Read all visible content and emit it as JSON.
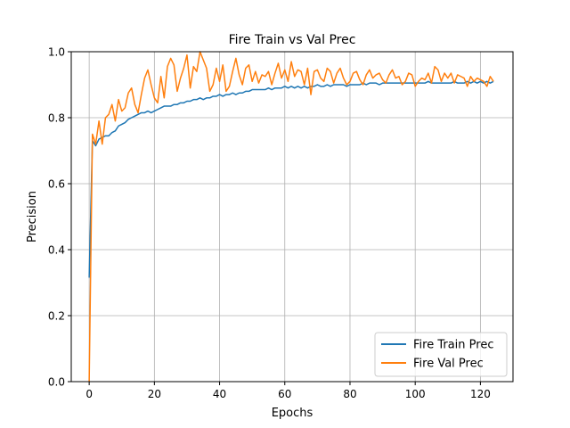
{
  "chart_data": {
    "type": "line",
    "title": "Fire Train vs Val Prec",
    "xlabel": "Epochs",
    "ylabel": "Precision",
    "xlim": [
      -5.5,
      130
    ],
    "ylim": [
      0.0,
      1.0
    ],
    "grid": true,
    "legend_position": "lower right",
    "x_ticks": [
      0,
      20,
      40,
      60,
      80,
      100,
      120
    ],
    "y_ticks": [
      0.0,
      0.2,
      0.4,
      0.6,
      0.8,
      1.0
    ],
    "x_tick_labels": [
      "0",
      "20",
      "40",
      "60",
      "80",
      "100",
      "120"
    ],
    "y_tick_labels": [
      "0.0",
      "0.2",
      "0.4",
      "0.6",
      "0.8",
      "1.0"
    ],
    "series": [
      {
        "name": "Fire Train Prec",
        "color": "#1f77b4",
        "values": [
          0.315,
          0.73,
          0.715,
          0.735,
          0.74,
          0.745,
          0.745,
          0.755,
          0.76,
          0.775,
          0.78,
          0.785,
          0.795,
          0.8,
          0.805,
          0.81,
          0.815,
          0.815,
          0.82,
          0.815,
          0.82,
          0.825,
          0.83,
          0.835,
          0.835,
          0.835,
          0.84,
          0.84,
          0.845,
          0.845,
          0.85,
          0.85,
          0.855,
          0.855,
          0.86,
          0.855,
          0.86,
          0.86,
          0.865,
          0.865,
          0.87,
          0.865,
          0.87,
          0.87,
          0.875,
          0.87,
          0.875,
          0.875,
          0.88,
          0.88,
          0.885,
          0.885,
          0.885,
          0.885,
          0.885,
          0.89,
          0.885,
          0.89,
          0.89,
          0.89,
          0.895,
          0.89,
          0.895,
          0.89,
          0.895,
          0.89,
          0.895,
          0.89,
          0.895,
          0.895,
          0.9,
          0.895,
          0.895,
          0.9,
          0.895,
          0.9,
          0.9,
          0.9,
          0.9,
          0.895,
          0.9,
          0.9,
          0.9,
          0.9,
          0.905,
          0.9,
          0.905,
          0.905,
          0.905,
          0.9,
          0.905,
          0.905,
          0.905,
          0.905,
          0.905,
          0.905,
          0.905,
          0.905,
          0.905,
          0.905,
          0.905,
          0.905,
          0.905,
          0.905,
          0.91,
          0.905,
          0.905,
          0.905,
          0.905,
          0.905,
          0.905,
          0.905,
          0.91,
          0.905,
          0.905,
          0.905,
          0.91,
          0.905,
          0.91,
          0.905,
          0.91,
          0.905,
          0.91,
          0.905,
          0.91
        ]
      },
      {
        "name": "Fire Val Prec",
        "color": "#ff7f0e",
        "values": [
          0.0,
          0.75,
          0.72,
          0.79,
          0.72,
          0.8,
          0.81,
          0.84,
          0.79,
          0.855,
          0.82,
          0.83,
          0.875,
          0.89,
          0.84,
          0.815,
          0.87,
          0.92,
          0.945,
          0.9,
          0.86,
          0.845,
          0.925,
          0.86,
          0.955,
          0.98,
          0.96,
          0.88,
          0.92,
          0.95,
          0.99,
          0.89,
          0.955,
          0.94,
          1.0,
          0.975,
          0.95,
          0.88,
          0.9,
          0.95,
          0.91,
          0.96,
          0.88,
          0.895,
          0.94,
          0.98,
          0.93,
          0.9,
          0.95,
          0.96,
          0.91,
          0.94,
          0.905,
          0.93,
          0.925,
          0.94,
          0.9,
          0.935,
          0.965,
          0.92,
          0.945,
          0.91,
          0.97,
          0.925,
          0.945,
          0.94,
          0.9,
          0.95,
          0.87,
          0.94,
          0.945,
          0.92,
          0.91,
          0.95,
          0.94,
          0.905,
          0.935,
          0.95,
          0.92,
          0.9,
          0.91,
          0.935,
          0.94,
          0.915,
          0.9,
          0.93,
          0.945,
          0.92,
          0.93,
          0.935,
          0.915,
          0.905,
          0.93,
          0.945,
          0.92,
          0.925,
          0.9,
          0.91,
          0.935,
          0.93,
          0.895,
          0.91,
          0.92,
          0.915,
          0.935,
          0.905,
          0.955,
          0.945,
          0.91,
          0.935,
          0.92,
          0.935,
          0.905,
          0.93,
          0.925,
          0.92,
          0.895,
          0.925,
          0.91,
          0.92,
          0.915,
          0.91,
          0.895,
          0.925,
          0.91
        ]
      }
    ]
  }
}
